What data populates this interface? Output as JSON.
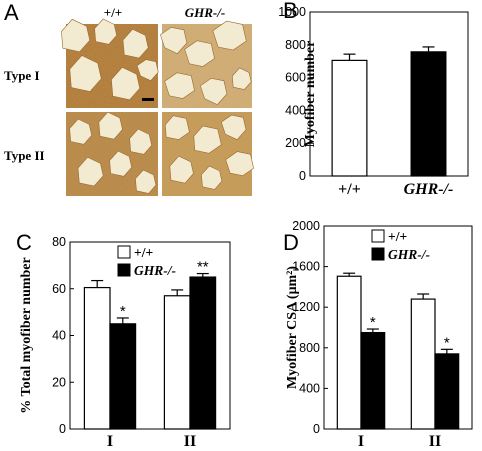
{
  "micrograph": {
    "panel_label": "A",
    "col_labels": [
      "+/+",
      "GHR-/-"
    ],
    "row_labels": [
      "Type I",
      "Type II"
    ]
  },
  "colors": {
    "wt": "#ffffff",
    "ko": "#000000"
  },
  "chart_data": [
    {
      "panel": "B",
      "type": "bar",
      "categories": [
        "+/+",
        "GHR-/-"
      ],
      "series": [
        {
          "values": [
            705,
            757
          ],
          "errors": [
            38,
            30
          ]
        }
      ],
      "ylabel": "Myofiber number",
      "ylim": [
        0,
        1000
      ],
      "yticks": [
        "0",
        "200",
        "400",
        "600",
        "800",
        "1000"
      ],
      "annotations": []
    },
    {
      "panel": "C",
      "type": "bar",
      "categories": [
        "I",
        "II"
      ],
      "series": [
        {
          "name": "+/+",
          "values": [
            60.5,
            57
          ],
          "errors": [
            3,
            2.5
          ]
        },
        {
          "name": "GHR-/-",
          "values": [
            45,
            65
          ],
          "errors": [
            2.5,
            1.5
          ]
        }
      ],
      "ylabel": "% Total myofiber number",
      "ylim": [
        0,
        80
      ],
      "yticks": [
        "0",
        "20",
        "40",
        "60",
        "80"
      ],
      "annotations": [
        [
          "",
          ""
        ],
        [
          "*",
          "**"
        ]
      ]
    },
    {
      "panel": "D",
      "type": "bar",
      "categories": [
        "I",
        "II"
      ],
      "series": [
        {
          "name": "+/+",
          "values": [
            1505,
            1280
          ],
          "errors": [
            30,
            50
          ]
        },
        {
          "name": "GHR-/-",
          "values": [
            950,
            740
          ],
          "errors": [
            35,
            45
          ]
        }
      ],
      "ylabel": "Myofiber CSA (μm²)",
      "ylim": [
        0,
        2000
      ],
      "yticks": [
        "0",
        "400",
        "800",
        "1200",
        "1600",
        "2000"
      ],
      "annotations": [
        [
          "",
          ""
        ],
        [
          "*",
          "*"
        ]
      ]
    }
  ]
}
